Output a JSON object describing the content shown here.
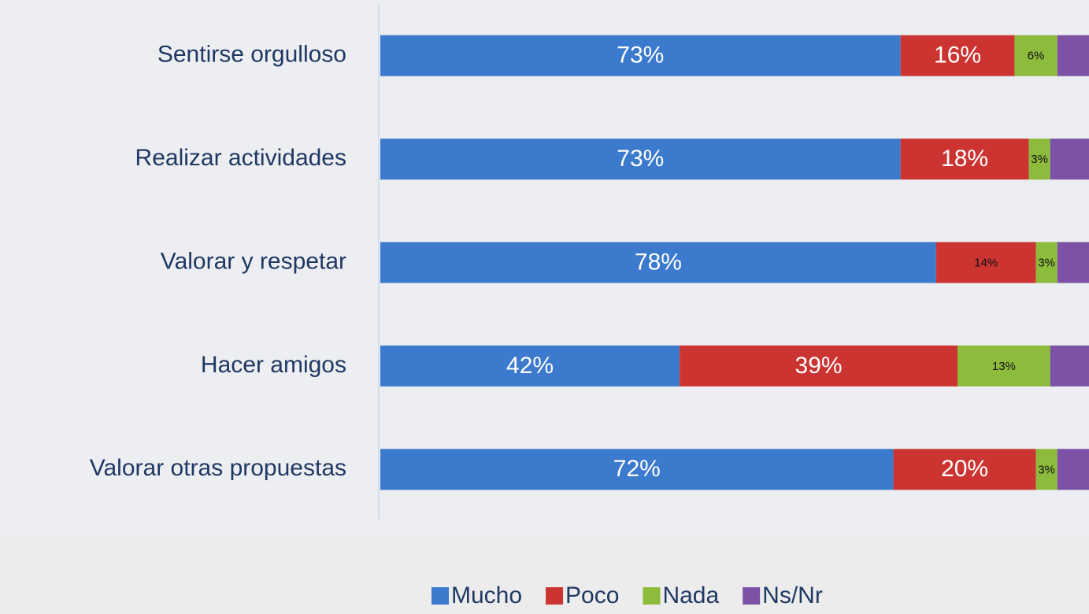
{
  "chart_data": {
    "type": "stacked-bar-horizontal",
    "categories": [
      "Sentirse orgulloso",
      "Realizar actividades",
      "Valorar y respetar",
      "Hacer amigos",
      "Valorar otras propuestas"
    ],
    "series": [
      {
        "name": "Mucho",
        "color": "#3b7acc",
        "values": [
          73,
          73,
          78,
          42,
          72
        ],
        "value_labels": [
          "73%",
          "73%",
          "78%",
          "42%",
          "72%"
        ]
      },
      {
        "name": "Poco",
        "color": "#cc3431",
        "values": [
          16,
          18,
          14,
          39,
          20
        ],
        "value_labels": [
          "16%",
          "18%",
          "14%",
          "39%",
          "20%"
        ]
      },
      {
        "name": "Nada",
        "color": "#8dbb3c",
        "values": [
          6,
          3,
          3,
          13,
          3
        ],
        "value_labels": [
          "6%",
          "3%",
          "3%",
          "13%",
          "3%"
        ]
      },
      {
        "name": "Ns/Nr",
        "color": "#7b52a6",
        "values": [
          5,
          6,
          5,
          6,
          5
        ]
      }
    ],
    "xlim": [
      0,
      100
    ],
    "legend": "bottom"
  }
}
